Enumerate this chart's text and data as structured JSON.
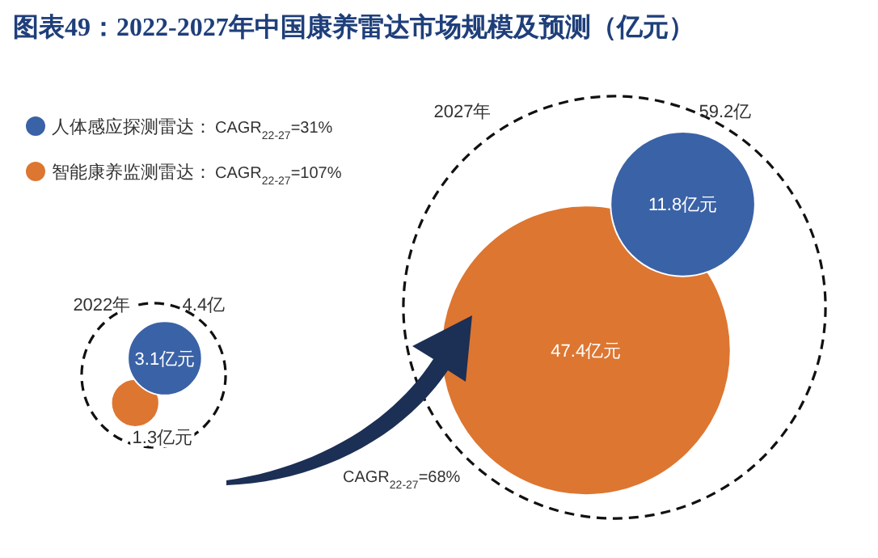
{
  "chart_data": {
    "type": "other",
    "title": "图表49：2022-2027年中国康养雷达市场规模及预测（亿元）",
    "categories": [
      "2022年",
      "2027年"
    ],
    "series": [
      {
        "name": "人体感应探测雷达：",
        "color": "#3a62a7",
        "values": [
          3.1,
          11.8
        ],
        "value_labels": [
          "3.1亿元",
          "11.8亿元"
        ]
      },
      {
        "name": "智能康养监测雷达：",
        "color": "#dd7631",
        "values": [
          1.3,
          47.4
        ],
        "value_labels": [
          "1.3亿元",
          "47.4亿元"
        ]
      }
    ],
    "totals": [
      "4.4亿",
      "59.2亿"
    ],
    "annotations": [
      "CAGR$_{22-27}$=31%",
      "CAGR$_{22-27}$=107%",
      "CAGR$_{22-27}$=68%"
    ],
    "legend": "top left"
  }
}
